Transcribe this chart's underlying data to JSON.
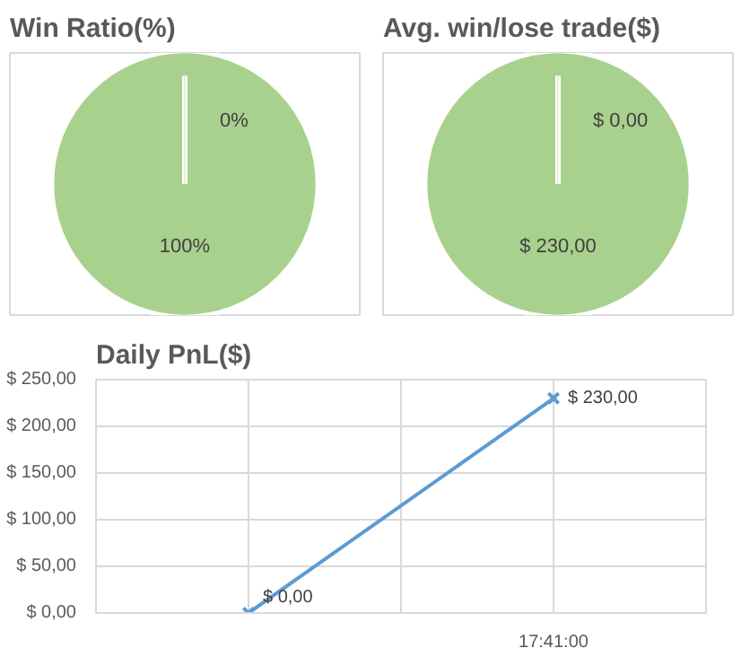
{
  "chart_data": [
    {
      "type": "pie",
      "title": "Win Ratio(%)",
      "categories": [
        null,
        null
      ],
      "values": [
        0,
        100
      ],
      "colors": [
        "#a9d18e",
        "#a9d18e"
      ],
      "value_labels": [
        "0%",
        "100%"
      ]
    },
    {
      "type": "pie",
      "title": "Avg. win/lose trade($)",
      "categories": [
        null,
        null
      ],
      "values": [
        0,
        230
      ],
      "colors": [
        "#a9d18e",
        "#a9d18e"
      ],
      "value_labels": [
        "$ 0,00",
        "$ 230,00"
      ]
    },
    {
      "type": "line",
      "title": "Daily PnL($)",
      "categories": [
        null,
        "17:41:00"
      ],
      "ylim": [
        0,
        250
      ],
      "yticks": [
        {
          "value": 0,
          "label": "$ 0,00"
        },
        {
          "value": 50,
          "label": "$ 50,00"
        },
        {
          "value": 100,
          "label": "$ 100,00"
        },
        {
          "value": 150,
          "label": "$ 150,00"
        },
        {
          "value": 200,
          "label": "$ 200,00"
        },
        {
          "value": 250,
          "label": "$ 250,00"
        }
      ],
      "series": [
        {
          "color": "#5b9bd5",
          "values": [
            0,
            230
          ],
          "value_labels": [
            "$ 0,00",
            "$ 230,00"
          ]
        }
      ],
      "marker": "cross",
      "grid": true
    }
  ]
}
